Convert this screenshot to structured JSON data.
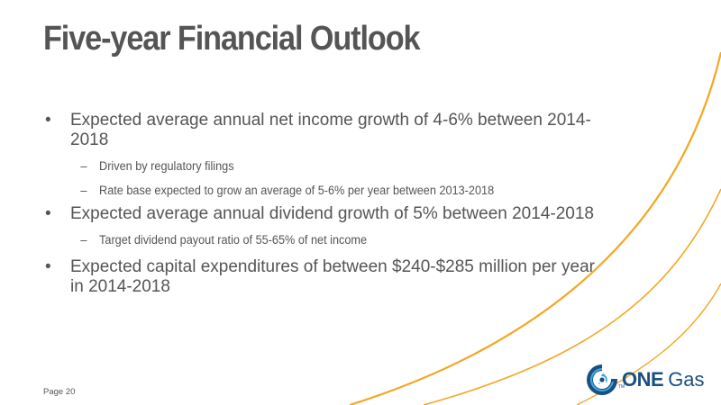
{
  "slide": {
    "title": "Five-year Financial Outlook",
    "bullets": [
      {
        "marker": "•",
        "lines": [
          "Expected average annual net income growth of 4-6% between 2014-",
          "2018"
        ],
        "sub": [
          {
            "marker": "–",
            "text": "Driven by regulatory filings"
          },
          {
            "marker": "–",
            "text": "Rate base expected to grow an average of 5-6% per year between 2013-2018"
          }
        ]
      },
      {
        "marker": "•",
        "lines": [
          "Expected average annual dividend growth of 5% between 2014-2018"
        ],
        "sub": [
          {
            "marker": "–",
            "text": "Target dividend payout ratio of 55-65% of net income"
          }
        ]
      },
      {
        "marker": "•",
        "lines": [
          "Expected capital expenditures of between $240-$285 million per year",
          "in 2014-2018"
        ],
        "sub": []
      }
    ],
    "footer": {
      "page_label": "Page 20"
    },
    "logo": {
      "word1": "ONE",
      "word2": "Gas",
      "tm": "TM"
    }
  },
  "colors": {
    "swoosh": "#f5a623",
    "title": "#555555",
    "text": "#555555",
    "logo_blue": "#1a4f80",
    "logo_light_blue": "#3ea8e0"
  }
}
